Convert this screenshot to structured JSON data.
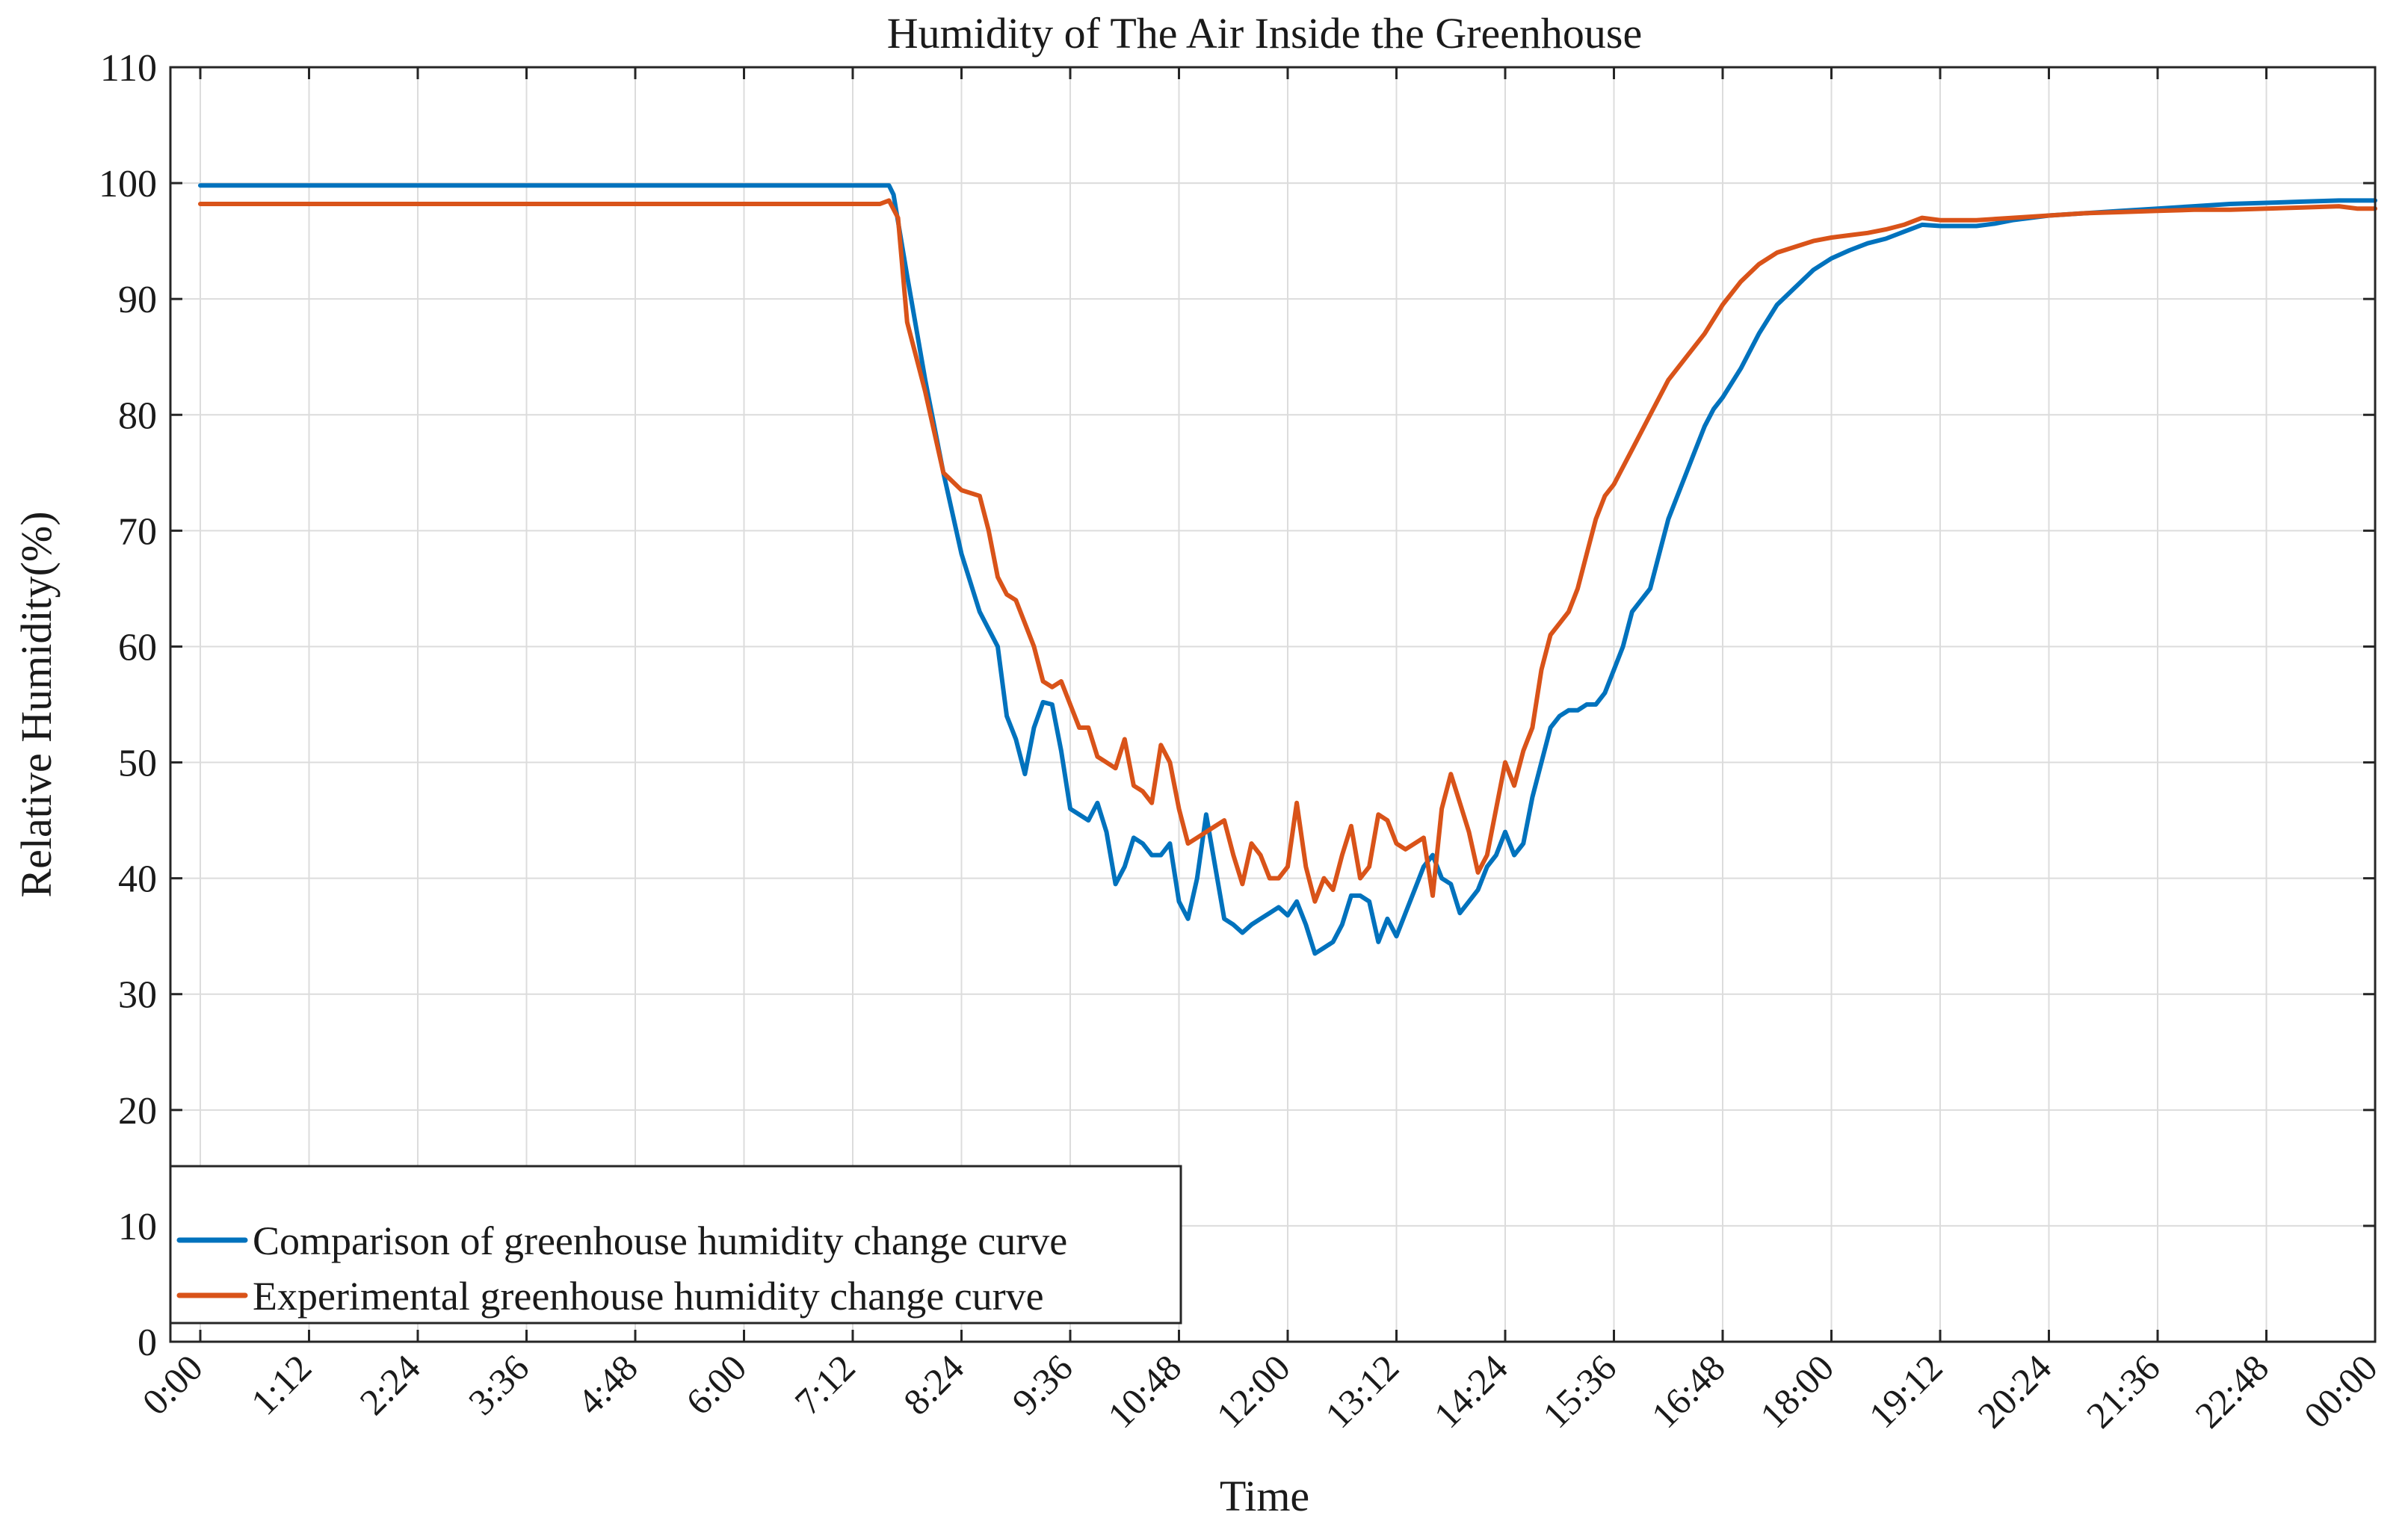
{
  "chart_data": {
    "type": "line",
    "title": "Humidity of The Air Inside the Greenhouse",
    "xlabel": "Time",
    "ylabel": "Relative Humidity(%)",
    "xlim": [
      -0.33,
      24
    ],
    "ylim": [
      0,
      110
    ],
    "grid": true,
    "legend_position": "bottom-left",
    "x_ticks": [
      0,
      1.2,
      2.4,
      3.6,
      4.8,
      6.0,
      7.2,
      8.4,
      9.6,
      10.8,
      12.0,
      13.2,
      14.4,
      15.6,
      16.8,
      18.0,
      19.2,
      20.4,
      21.6,
      22.8,
      24.0
    ],
    "x_tick_labels": [
      "0:00",
      "1:12",
      "2:24",
      "3:36",
      "4:48",
      "6:00",
      "7:12",
      "8:24",
      "9:36",
      "10:48",
      "12:00",
      "13:12",
      "14:24",
      "15:36",
      "16:48",
      "18:00",
      "19:12",
      "20:24",
      "21:36",
      "22:48",
      "00:00"
    ],
    "y_ticks": [
      0,
      10,
      20,
      30,
      40,
      50,
      60,
      70,
      80,
      90,
      100,
      110
    ],
    "y_tick_labels": [
      "0",
      "10",
      "20",
      "30",
      "40",
      "50",
      "60",
      "70",
      "80",
      "90",
      "100",
      "110"
    ],
    "series": [
      {
        "name": "Comparison of greenhouse humidity change curve",
        "color": "#0072BD",
        "x": [
          0.0,
          7.5,
          7.6,
          7.65,
          7.8,
          8.0,
          8.2,
          8.4,
          8.6,
          8.8,
          8.9,
          9.0,
          9.1,
          9.2,
          9.3,
          9.4,
          9.5,
          9.6,
          9.7,
          9.8,
          9.9,
          10.0,
          10.1,
          10.2,
          10.3,
          10.4,
          10.5,
          10.6,
          10.7,
          10.8,
          10.9,
          11.0,
          11.1,
          11.2,
          11.3,
          11.4,
          11.5,
          11.6,
          11.7,
          11.8,
          11.9,
          12.0,
          12.1,
          12.2,
          12.3,
          12.4,
          12.5,
          12.6,
          12.7,
          12.8,
          12.9,
          13.0,
          13.1,
          13.2,
          13.3,
          13.4,
          13.5,
          13.6,
          13.7,
          13.8,
          13.9,
          14.0,
          14.1,
          14.2,
          14.3,
          14.4,
          14.5,
          14.6,
          14.7,
          14.8,
          14.9,
          15.0,
          15.1,
          15.2,
          15.3,
          15.4,
          15.5,
          15.6,
          15.7,
          15.8,
          15.9,
          16.0,
          16.1,
          16.2,
          16.3,
          16.4,
          16.5,
          16.6,
          16.7,
          16.8,
          17.0,
          17.2,
          17.4,
          17.6,
          17.8,
          18.0,
          18.2,
          18.4,
          18.6,
          18.8,
          19.0,
          19.2,
          19.4,
          19.6,
          19.8,
          20.0,
          20.4,
          20.8,
          21.2,
          21.6,
          22.0,
          22.4,
          22.8,
          23.2,
          23.6,
          24.0
        ],
        "y": [
          99.8,
          99.8,
          99.8,
          99.0,
          92.0,
          83.0,
          75.0,
          68.0,
          63.0,
          60.0,
          54.0,
          52.0,
          49.0,
          53.0,
          55.2,
          55.0,
          51.0,
          46.0,
          45.5,
          45.0,
          46.5,
          44.0,
          39.5,
          41.0,
          43.5,
          43.0,
          42.0,
          42.0,
          43.0,
          38.0,
          36.5,
          40.0,
          45.5,
          41.0,
          36.5,
          36.0,
          35.3,
          36.0,
          36.5,
          37.0,
          37.5,
          36.8,
          38.0,
          36.0,
          33.5,
          34.0,
          34.5,
          36.0,
          38.5,
          38.5,
          38.0,
          34.5,
          36.5,
          35.0,
          37.0,
          39.0,
          41.0,
          42.0,
          40.0,
          39.5,
          37.0,
          38.0,
          39.0,
          41.0,
          42.0,
          44.0,
          42.0,
          43.0,
          47.0,
          50.0,
          53.0,
          54.0,
          54.5,
          54.5,
          55.0,
          55.0,
          56.0,
          58.0,
          60.0,
          63.0,
          64.0,
          65.0,
          68.0,
          71.0,
          73.0,
          75.0,
          77.0,
          79.0,
          80.5,
          81.5,
          84.0,
          87.0,
          89.5,
          91.0,
          92.5,
          93.5,
          94.2,
          94.8,
          95.2,
          95.8,
          96.4,
          96.3,
          96.3,
          96.3,
          96.5,
          96.8,
          97.2,
          97.4,
          97.6,
          97.8,
          98.0,
          98.2,
          98.3,
          98.4,
          98.5,
          98.5
        ]
      },
      {
        "name": "Experimental greenhouse humidity change curve",
        "color": "#D95319",
        "x": [
          0.0,
          7.5,
          7.6,
          7.7,
          7.8,
          8.0,
          8.2,
          8.4,
          8.6,
          8.7,
          8.8,
          8.9,
          9.0,
          9.1,
          9.2,
          9.3,
          9.4,
          9.5,
          9.6,
          9.7,
          9.8,
          9.9,
          10.0,
          10.1,
          10.2,
          10.3,
          10.4,
          10.5,
          10.6,
          10.7,
          10.8,
          10.9,
          11.0,
          11.1,
          11.2,
          11.3,
          11.4,
          11.5,
          11.6,
          11.7,
          11.8,
          11.9,
          12.0,
          12.1,
          12.2,
          12.3,
          12.4,
          12.5,
          12.6,
          12.7,
          12.8,
          12.9,
          13.0,
          13.1,
          13.2,
          13.3,
          13.4,
          13.5,
          13.6,
          13.7,
          13.8,
          13.9,
          14.0,
          14.1,
          14.2,
          14.3,
          14.4,
          14.5,
          14.6,
          14.7,
          14.8,
          14.9,
          15.0,
          15.1,
          15.2,
          15.3,
          15.4,
          15.5,
          15.6,
          15.8,
          16.0,
          16.2,
          16.4,
          16.6,
          16.8,
          17.0,
          17.2,
          17.4,
          17.6,
          17.8,
          18.0,
          18.2,
          18.4,
          18.6,
          18.8,
          19.0,
          19.2,
          19.4,
          19.6,
          20.0,
          20.4,
          20.8,
          21.2,
          21.6,
          22.0,
          22.4,
          22.8,
          23.2,
          23.6,
          23.8,
          24.0
        ],
        "y": [
          98.2,
          98.2,
          98.5,
          97.0,
          88.0,
          82.0,
          75.0,
          73.5,
          73.0,
          70.0,
          66.0,
          64.5,
          64.0,
          62.0,
          60.0,
          57.0,
          56.5,
          57.0,
          55.0,
          53.0,
          53.0,
          50.5,
          50.0,
          49.5,
          52.0,
          48.0,
          47.5,
          46.5,
          51.5,
          50.0,
          46.0,
          43.0,
          43.5,
          44.0,
          44.5,
          45.0,
          42.0,
          39.5,
          43.0,
          42.0,
          40.0,
          40.0,
          41.0,
          46.5,
          41.0,
          38.0,
          40.0,
          39.0,
          42.0,
          44.5,
          40.0,
          41.0,
          45.5,
          45.0,
          43.0,
          42.5,
          43.0,
          43.5,
          38.5,
          46.0,
          49.0,
          46.5,
          44.0,
          40.5,
          42.0,
          46.0,
          50.0,
          48.0,
          51.0,
          53.0,
          58.0,
          61.0,
          62.0,
          63.0,
          65.0,
          68.0,
          71.0,
          73.0,
          74.0,
          77.0,
          80.0,
          83.0,
          85.0,
          87.0,
          89.5,
          91.5,
          93.0,
          94.0,
          94.5,
          95.0,
          95.3,
          95.5,
          95.7,
          96.0,
          96.4,
          97.0,
          96.8,
          96.8,
          96.8,
          97.0,
          97.2,
          97.4,
          97.5,
          97.6,
          97.7,
          97.7,
          97.8,
          97.9,
          98.0,
          97.8,
          97.8
        ]
      }
    ]
  }
}
